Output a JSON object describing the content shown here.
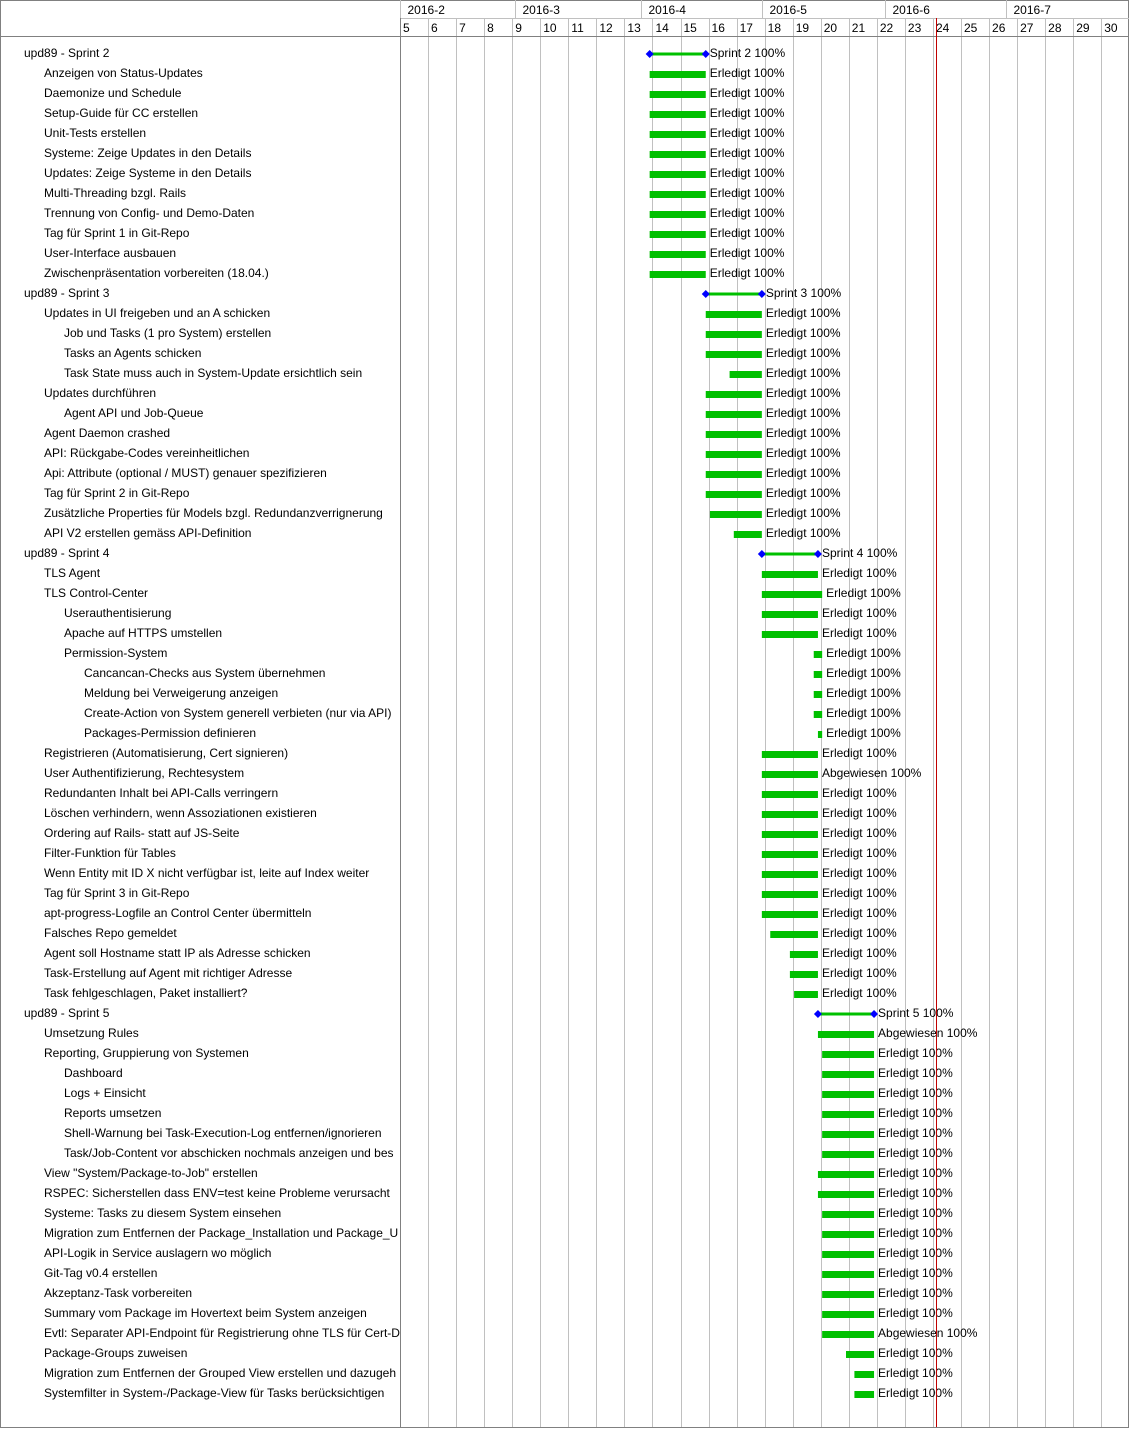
{
  "colors": {
    "bar": "#00c000",
    "grid": "#c0c0c0",
    "today_line": "#c00000",
    "milestone": "#0000ff",
    "summary_line": "#00c000",
    "border": "#808080"
  },
  "chart_data": {
    "type": "gantt",
    "x_unit": "week",
    "week_range": [
      5,
      31
    ],
    "today_week": 24.1,
    "month_headers": [
      {
        "label": "2016-2",
        "start_week": 5
      },
      {
        "label": "2016-3",
        "start_week": 9.1
      },
      {
        "label": "2016-4",
        "start_week": 13.6
      },
      {
        "label": "2016-5",
        "start_week": 17.9
      },
      {
        "label": "2016-6",
        "start_week": 22.3
      },
      {
        "label": "2016-7",
        "start_week": 26.6
      }
    ],
    "weeks": [
      "5",
      "6",
      "7",
      "8",
      "9",
      "10",
      "11",
      "12",
      "13",
      "14",
      "15",
      "16",
      "17",
      "18",
      "19",
      "20",
      "21",
      "22",
      "23",
      "24",
      "25",
      "26",
      "27",
      "28",
      "29",
      "30"
    ],
    "tasks": [
      {
        "name": "upd89 - Sprint 2",
        "level": 0,
        "summary": true,
        "start": 13.9,
        "end": 15.9,
        "status": "Sprint 2 100%"
      },
      {
        "name": "Anzeigen von Status-Updates",
        "level": 1,
        "start": 13.9,
        "end": 15.9,
        "status": "Erledigt 100%"
      },
      {
        "name": "Daemonize und Schedule",
        "level": 1,
        "start": 13.9,
        "end": 15.9,
        "status": "Erledigt 100%"
      },
      {
        "name": "Setup-Guide für CC erstellen",
        "level": 1,
        "start": 13.9,
        "end": 15.9,
        "status": "Erledigt 100%"
      },
      {
        "name": "Unit-Tests erstellen",
        "level": 1,
        "start": 13.9,
        "end": 15.9,
        "status": "Erledigt 100%"
      },
      {
        "name": "Systeme: Zeige Updates in den Details",
        "level": 1,
        "start": 13.9,
        "end": 15.9,
        "status": "Erledigt 100%"
      },
      {
        "name": "Updates: Zeige Systeme in  den Details",
        "level": 1,
        "start": 13.9,
        "end": 15.9,
        "status": "Erledigt 100%"
      },
      {
        "name": "Multi-Threading bzgl. Rails",
        "level": 1,
        "start": 13.9,
        "end": 15.9,
        "status": "Erledigt 100%"
      },
      {
        "name": "Trennung von Config- und Demo-Daten",
        "level": 1,
        "start": 13.9,
        "end": 15.9,
        "status": "Erledigt 100%"
      },
      {
        "name": "Tag für Sprint 1 in Git-Repo",
        "level": 1,
        "start": 13.9,
        "end": 15.9,
        "status": "Erledigt 100%"
      },
      {
        "name": "User-Interface ausbauen",
        "level": 1,
        "start": 13.9,
        "end": 15.9,
        "status": "Erledigt 100%"
      },
      {
        "name": "Zwischenpräsentation vorbereiten (18.04.)",
        "level": 1,
        "start": 13.9,
        "end": 15.9,
        "status": "Erledigt 100%"
      },
      {
        "name": "upd89 - Sprint 3",
        "level": 0,
        "summary": true,
        "start": 15.9,
        "end": 17.9,
        "status": "Sprint 3 100%"
      },
      {
        "name": "Updates in UI freigeben und an A schicken",
        "level": 1,
        "start": 15.9,
        "end": 17.9,
        "status": "Erledigt 100%"
      },
      {
        "name": "Job und Tasks (1 pro System) erstellen",
        "level": 2,
        "start": 15.9,
        "end": 17.9,
        "status": "Erledigt 100%"
      },
      {
        "name": "Tasks an Agents schicken",
        "level": 2,
        "start": 15.9,
        "end": 17.9,
        "status": "Erledigt 100%"
      },
      {
        "name": "Task State muss auch in System-Update ersichtlich sein",
        "level": 2,
        "start": 16.75,
        "end": 17.9,
        "status": "Erledigt 100%"
      },
      {
        "name": "Updates durchführen",
        "level": 1,
        "start": 15.9,
        "end": 17.9,
        "status": "Erledigt 100%"
      },
      {
        "name": "Agent API und Job-Queue",
        "level": 2,
        "start": 15.9,
        "end": 17.9,
        "status": "Erledigt 100%"
      },
      {
        "name": "Agent Daemon crashed",
        "level": 1,
        "start": 15.9,
        "end": 17.9,
        "status": "Erledigt 100%"
      },
      {
        "name": "API: Rückgabe-Codes vereinheitlichen",
        "level": 1,
        "start": 15.9,
        "end": 17.9,
        "status": "Erledigt 100%"
      },
      {
        "name": "Api: Attribute (optional / MUST) genauer spezifizieren",
        "level": 1,
        "start": 15.9,
        "end": 17.9,
        "status": "Erledigt 100%"
      },
      {
        "name": "Tag für Sprint 2 in Git-Repo",
        "level": 1,
        "start": 15.9,
        "end": 17.9,
        "status": "Erledigt 100%"
      },
      {
        "name": "Zusätzliche Properties für Models bzgl. Redundanzverrignerung",
        "level": 1,
        "start": 16.05,
        "end": 17.9,
        "status": "Erledigt 100%"
      },
      {
        "name": "API V2 erstellen gemäss API-Definition",
        "level": 1,
        "start": 16.9,
        "end": 17.9,
        "status": "Erledigt 100%"
      },
      {
        "name": "upd89 - Sprint 4",
        "level": 0,
        "summary": true,
        "start": 17.9,
        "end": 19.9,
        "status": "Sprint 4 100%"
      },
      {
        "name": "TLS Agent",
        "level": 1,
        "start": 17.9,
        "end": 19.9,
        "status": "Erledigt 100%"
      },
      {
        "name": "TLS Control-Center",
        "level": 1,
        "start": 17.9,
        "end": 20.05,
        "status": "Erledigt 100%"
      },
      {
        "name": "Userauthentisierung",
        "level": 2,
        "start": 17.9,
        "end": 19.9,
        "status": "Erledigt 100%"
      },
      {
        "name": "Apache auf HTTPS umstellen",
        "level": 2,
        "start": 17.9,
        "end": 19.9,
        "status": "Erledigt 100%"
      },
      {
        "name": "Permission-System",
        "level": 2,
        "start": 19.75,
        "end": 20.05,
        "status": "Erledigt 100%"
      },
      {
        "name": "Cancancan-Checks aus System übernehmen",
        "level": 3,
        "start": 19.75,
        "end": 20.05,
        "status": "Erledigt 100%"
      },
      {
        "name": "Meldung bei Verweigerung anzeigen",
        "level": 3,
        "start": 19.75,
        "end": 20.05,
        "status": "Erledigt 100%"
      },
      {
        "name": "Create-Action von System generell verbieten (nur via API)",
        "level": 3,
        "start": 19.75,
        "end": 20.05,
        "status": "Erledigt 100%"
      },
      {
        "name": "Packages-Permission definieren",
        "level": 3,
        "start": 19.9,
        "end": 20.05,
        "status": "Erledigt 100%"
      },
      {
        "name": "Registrieren (Automatisierung, Cert signieren)",
        "level": 1,
        "start": 17.9,
        "end": 19.9,
        "status": "Erledigt 100%"
      },
      {
        "name": "User Authentifizierung, Rechtesystem",
        "level": 1,
        "start": 17.9,
        "end": 19.9,
        "status": "Abgewiesen 100%"
      },
      {
        "name": "Redundanten Inhalt bei API-Calls verringern",
        "level": 1,
        "start": 17.9,
        "end": 19.9,
        "status": "Erledigt 100%"
      },
      {
        "name": "Löschen verhindern, wenn Assoziationen existieren",
        "level": 1,
        "start": 17.9,
        "end": 19.9,
        "status": "Erledigt 100%"
      },
      {
        "name": "Ordering auf Rails- statt auf JS-Seite",
        "level": 1,
        "start": 17.9,
        "end": 19.9,
        "status": "Erledigt 100%"
      },
      {
        "name": "Filter-Funktion für Tables",
        "level": 1,
        "start": 17.9,
        "end": 19.9,
        "status": "Erledigt 100%"
      },
      {
        "name": "Wenn Entity mit ID X nicht verfügbar ist, leite auf Index weiter",
        "level": 1,
        "start": 17.9,
        "end": 19.9,
        "status": "Erledigt 100%"
      },
      {
        "name": "Tag für Sprint 3 in Git-Repo",
        "level": 1,
        "start": 17.9,
        "end": 19.9,
        "status": "Erledigt 100%"
      },
      {
        "name": "apt-progress-Logfile an Control Center übermitteln",
        "level": 1,
        "start": 17.9,
        "end": 19.9,
        "status": "Erledigt 100%"
      },
      {
        "name": "Falsches Repo gemeldet",
        "level": 1,
        "start": 18.2,
        "end": 19.9,
        "status": "Erledigt 100%"
      },
      {
        "name": "Agent soll Hostname statt IP als Adresse schicken",
        "level": 1,
        "start": 18.9,
        "end": 19.9,
        "status": "Erledigt 100%"
      },
      {
        "name": "Task-Erstellung auf Agent mit richtiger Adresse",
        "level": 1,
        "start": 18.9,
        "end": 19.9,
        "status": "Erledigt 100%"
      },
      {
        "name": "Task fehlgeschlagen, Paket installiert?",
        "level": 1,
        "start": 19.05,
        "end": 19.9,
        "status": "Erledigt 100%"
      },
      {
        "name": "upd89 - Sprint 5",
        "level": 0,
        "summary": true,
        "start": 19.9,
        "end": 21.9,
        "status": "Sprint 5 100%"
      },
      {
        "name": "Umsetzung Rules",
        "level": 1,
        "start": 19.9,
        "end": 21.9,
        "status": "Abgewiesen 100%"
      },
      {
        "name": "Reporting, Gruppierung von Systemen",
        "level": 1,
        "start": 20.05,
        "end": 21.9,
        "status": "Erledigt 100%"
      },
      {
        "name": "Dashboard",
        "level": 2,
        "start": 20.05,
        "end": 21.9,
        "status": "Erledigt 100%"
      },
      {
        "name": "Logs + Einsicht",
        "level": 2,
        "start": 20.05,
        "end": 21.9,
        "status": "Erledigt 100%"
      },
      {
        "name": "Reports umsetzen",
        "level": 2,
        "start": 20.05,
        "end": 21.9,
        "status": "Erledigt 100%"
      },
      {
        "name": "Shell-Warnung bei Task-Execution-Log entfernen/ignorieren",
        "level": 2,
        "start": 20.05,
        "end": 21.9,
        "status": "Erledigt 100%"
      },
      {
        "name": "Task/Job-Content vor abschicken nochmals anzeigen und bes",
        "level": 2,
        "start": 20.05,
        "end": 21.9,
        "status": "Erledigt 100%"
      },
      {
        "name": "View \"System/Package-to-Job\" erstellen",
        "level": 1,
        "start": 19.9,
        "end": 21.9,
        "status": "Erledigt 100%"
      },
      {
        "name": "RSPEC: Sicherstellen dass ENV=test keine Probleme verursacht",
        "level": 1,
        "start": 19.9,
        "end": 21.9,
        "status": "Erledigt 100%"
      },
      {
        "name": "Systeme: Tasks zu diesem System einsehen",
        "level": 1,
        "start": 20.05,
        "end": 21.9,
        "status": "Erledigt 100%"
      },
      {
        "name": "Migration zum Entfernen der Package_Installation und Package_U",
        "level": 1,
        "start": 20.05,
        "end": 21.9,
        "status": "Erledigt 100%"
      },
      {
        "name": "API-Logik in Service auslagern wo möglich",
        "level": 1,
        "start": 20.05,
        "end": 21.9,
        "status": "Erledigt 100%"
      },
      {
        "name": "Git-Tag v0.4 erstellen",
        "level": 1,
        "start": 20.05,
        "end": 21.9,
        "status": "Erledigt 100%"
      },
      {
        "name": "Akzeptanz-Task vorbereiten",
        "level": 1,
        "start": 20.05,
        "end": 21.9,
        "status": "Erledigt 100%"
      },
      {
        "name": "Summary vom Package im Hovertext beim System anzeigen",
        "level": 1,
        "start": 20.05,
        "end": 21.9,
        "status": "Erledigt 100%"
      },
      {
        "name": "Evtl: Separater API-Endpoint für Registrierung ohne TLS für Cert-D",
        "level": 1,
        "start": 20.05,
        "end": 21.9,
        "status": "Abgewiesen 100%"
      },
      {
        "name": "Package-Groups zuweisen",
        "level": 1,
        "start": 20.9,
        "end": 21.9,
        "status": "Erledigt 100%"
      },
      {
        "name": "Migration zum Entfernen der Grouped View erstellen und dazugeh",
        "level": 1,
        "start": 21.2,
        "end": 21.9,
        "status": "Erledigt 100%"
      },
      {
        "name": "Systemfilter in System-/Package-View für Tasks berücksichtigen",
        "level": 1,
        "start": 21.2,
        "end": 21.9,
        "status": "Erledigt 100%"
      }
    ]
  }
}
